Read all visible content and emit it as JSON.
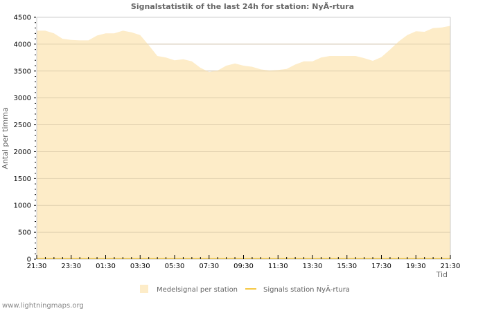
{
  "chart_data": {
    "type": "area",
    "title": "Signalstatistik of the last 24h for station: NyÃ-rtura",
    "xlabel": "Tid",
    "ylabel": "Antal per timma",
    "ylim": [
      0,
      4500
    ],
    "yticks": [
      0,
      500,
      1000,
      1500,
      2000,
      2500,
      3000,
      3500,
      4000,
      4500
    ],
    "xtick_labels": [
      "21:30",
      "23:30",
      "01:30",
      "03:30",
      "05:30",
      "07:30",
      "09:30",
      "11:30",
      "13:30",
      "15:30",
      "17:30",
      "19:30",
      "21:30"
    ],
    "grid": true,
    "legend_position": "bottom",
    "x": [
      "21:30",
      "22:00",
      "22:30",
      "23:00",
      "23:30",
      "00:00",
      "00:30",
      "01:00",
      "01:30",
      "02:00",
      "02:30",
      "03:00",
      "03:30",
      "04:00",
      "04:30",
      "05:00",
      "05:30",
      "06:00",
      "06:30",
      "07:00",
      "07:30",
      "08:00",
      "08:30",
      "09:00",
      "09:30",
      "10:00",
      "10:30",
      "11:00",
      "11:30",
      "12:00",
      "12:30",
      "13:00",
      "13:30",
      "14:00",
      "14:30",
      "15:00",
      "15:30",
      "16:00",
      "16:30",
      "17:00",
      "17:30",
      "18:00",
      "18:30",
      "19:00",
      "19:30",
      "20:00",
      "20:30",
      "21:00",
      "21:30"
    ],
    "series": [
      {
        "name": "Medelsignal per station",
        "type": "area",
        "color": "#fdecc8",
        "values": [
          4250,
          4250,
          4200,
          4100,
          4080,
          4070,
          4070,
          4160,
          4200,
          4200,
          4250,
          4220,
          4170,
          3980,
          3780,
          3750,
          3700,
          3720,
          3680,
          3560,
          3480,
          3510,
          3600,
          3640,
          3600,
          3580,
          3530,
          3510,
          3520,
          3540,
          3620,
          3680,
          3680,
          3750,
          3780,
          3780,
          3780,
          3780,
          3740,
          3690,
          3760,
          3900,
          4050,
          4170,
          4240,
          4230,
          4300,
          4310,
          4340
        ]
      },
      {
        "name": "Signals station NyÃ-rtura",
        "type": "line",
        "color": "#f5c842",
        "values": [
          0,
          0,
          0,
          0,
          0,
          0,
          0,
          0,
          0,
          0,
          0,
          0,
          0,
          0,
          0,
          0,
          0,
          0,
          0,
          0,
          0,
          0,
          0,
          0,
          0,
          0,
          0,
          0,
          0,
          0,
          0,
          0,
          0,
          0,
          0,
          0,
          0,
          0,
          0,
          0,
          0,
          0,
          0,
          0,
          0,
          0,
          0,
          0,
          0
        ]
      }
    ]
  },
  "legend": {
    "items": [
      {
        "label": "Medelsignal per station",
        "color": "#fdecc8",
        "kind": "area"
      },
      {
        "label": "Signals station NyÃ-rtura",
        "color": "#f5c842",
        "kind": "line"
      }
    ]
  },
  "watermark": "www.lightningmaps.org"
}
